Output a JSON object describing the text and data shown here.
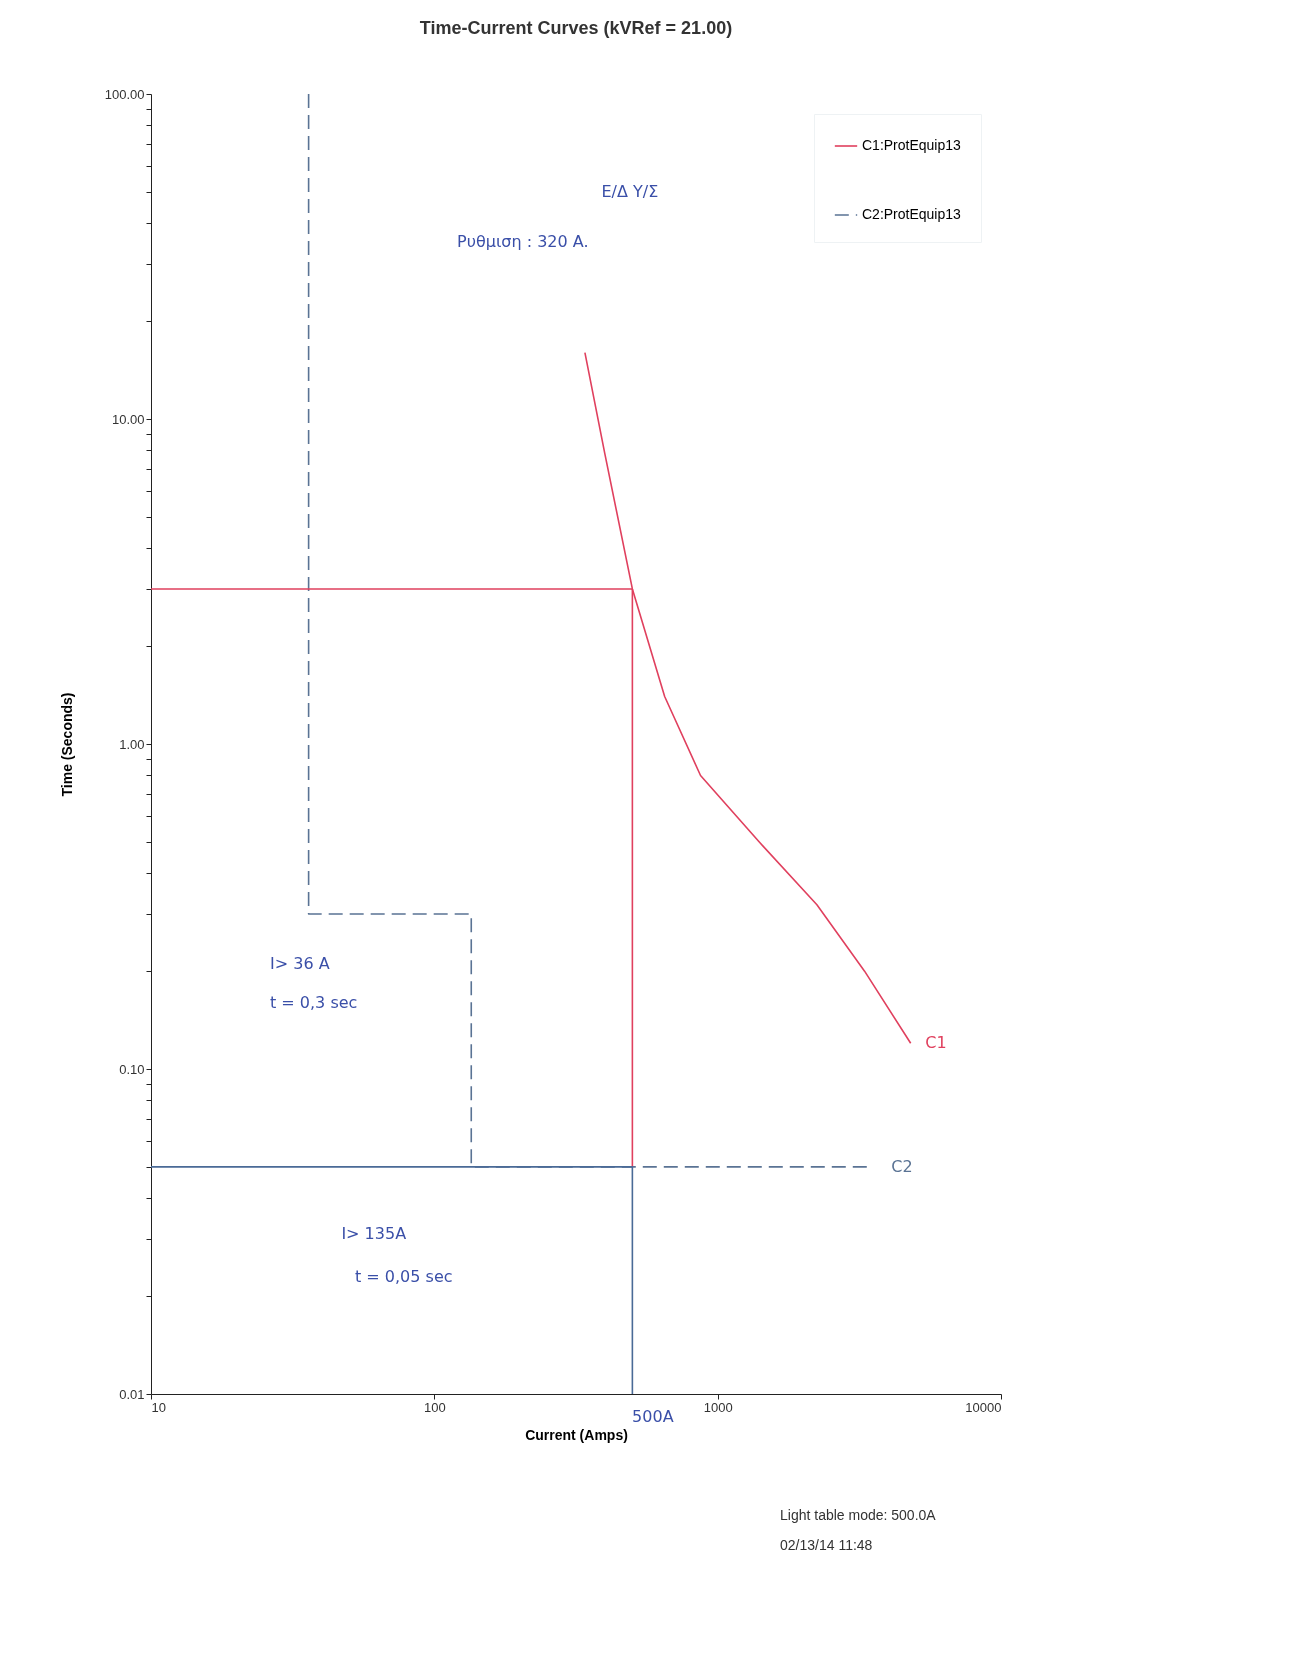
{
  "chart_data": {
    "type": "line",
    "title": "Time-Current Curves (kVRef = 21.00)",
    "xlabel": "Current (Amps)",
    "ylabel": "Time (Seconds)",
    "log": "xy",
    "grid": false,
    "legend": "top right",
    "xlim": [
      10,
      10000
    ],
    "ylim": [
      0.01,
      100
    ],
    "xticks": [
      10,
      100,
      1000,
      10000
    ],
    "yticks": [
      0.01,
      {
        "value": 0.02,
        "label": null
      },
      {
        "value": 0.03,
        "label": null
      },
      {
        "value": 0.04,
        "label": null
      },
      {
        "value": 0.05,
        "label": null
      },
      {
        "value": 0.06,
        "label": null
      },
      {
        "value": 0.07,
        "label": null
      },
      {
        "value": 0.08,
        "label": null
      },
      {
        "value": 0.09,
        "label": null
      },
      {
        "value": 0.1,
        "label": "0.10"
      },
      {
        "value": 0.2,
        "label": null
      },
      {
        "value": 0.3,
        "label": null
      },
      {
        "value": 0.4,
        "label": null
      },
      {
        "value": 0.5,
        "label": null
      },
      {
        "value": 0.6,
        "label": null
      },
      {
        "value": 0.7,
        "label": null
      },
      {
        "value": 0.8,
        "label": null
      },
      {
        "value": 0.9,
        "label": null
      },
      {
        "value": 1,
        "label": "1.00"
      },
      {
        "value": 2,
        "label": null
      },
      {
        "value": 3,
        "label": null
      },
      {
        "value": 4,
        "label": null
      },
      {
        "value": 5,
        "label": null
      },
      {
        "value": 6,
        "label": null
      },
      {
        "value": 7,
        "label": null
      },
      {
        "value": 8,
        "label": null
      },
      {
        "value": 9,
        "label": null
      },
      {
        "value": 10,
        "label": "10.00"
      },
      {
        "value": 20,
        "label": null
      },
      {
        "value": 30,
        "label": null
      },
      {
        "value": 40,
        "label": null
      },
      {
        "value": 50,
        "label": null
      },
      {
        "value": 60,
        "label": null
      },
      {
        "value": 70,
        "label": null
      },
      {
        "value": 80,
        "label": null
      },
      {
        "value": 90,
        "label": null
      },
      {
        "value": 100,
        "label": "100.00"
      }
    ],
    "series": [
      {
        "name": "C1:ProtEquip13",
        "color": "#e0405e",
        "line_style": "solid",
        "x": [
          340,
          400,
          500,
          650,
          870,
          1400,
          2240,
          3300,
          4800
        ],
        "values": [
          16,
          7.8,
          3,
          1.4,
          0.8,
          0.5,
          0.32,
          0.2,
          0.12
        ]
      },
      {
        "name": "C2:ProtEquip13",
        "color": "#5a7394",
        "line_style": "dashed",
        "x": [
          36,
          36,
          135,
          135,
          3500
        ],
        "values": [
          100,
          0.3,
          0.3,
          0.05,
          0.05
        ]
      },
      {
        "color": "#e0405e",
        "line_style": "solid",
        "x": [
          10,
          500,
          500
        ],
        "values": [
          3,
          3,
          0.05
        ]
      },
      {
        "color": "#4a6a96",
        "line_style": "solid",
        "x": [
          10,
          500,
          500
        ],
        "values": [
          0.05,
          0.05,
          0.01
        ]
      }
    ],
    "annotations": [
      "C1",
      "C2",
      "Ε/Δ   Υ/Σ",
      "Ρυθμιση  : 320 A.",
      "I> 36 A",
      "t = 0,3 sec",
      "I> 135A",
      "t = 0,05 sec",
      "500A",
      "Light table mode: 500.0A",
      "02/13/14 11:48"
    ]
  }
}
